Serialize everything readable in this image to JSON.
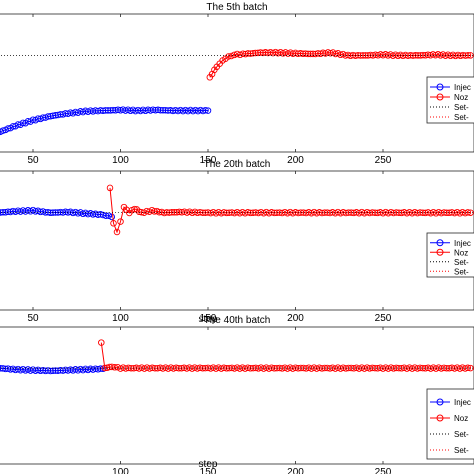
{
  "chart_data": [
    {
      "type": "line",
      "title": "The 5th batch",
      "xlabel": "",
      "ylabel": "",
      "xticks": [
        50,
        100,
        150,
        200,
        250
      ],
      "xlim": [
        30,
        302
      ],
      "ylim": [
        0,
        1
      ],
      "grid": false,
      "legend_position": "right",
      "series": [
        {
          "name": "Injec",
          "color": "#0000ff",
          "marker": "circle",
          "x": [
            30,
            40,
            50,
            60,
            70,
            80,
            90,
            100,
            110,
            120,
            130,
            140,
            150
          ],
          "y": [
            0.14,
            0.19,
            0.23,
            0.26,
            0.28,
            0.295,
            0.3,
            0.305,
            0.3,
            0.305,
            0.3,
            0.3,
            0.3
          ]
        },
        {
          "name": "Noz",
          "color": "#ff0000",
          "marker": "circle",
          "x": [
            151,
            155,
            160,
            165,
            170,
            180,
            190,
            200,
            210,
            220,
            230,
            240,
            250,
            260,
            270,
            280,
            290,
            300
          ],
          "y": [
            0.54,
            0.62,
            0.68,
            0.705,
            0.71,
            0.72,
            0.72,
            0.715,
            0.71,
            0.72,
            0.7,
            0.7,
            0.705,
            0.7,
            0.7,
            0.705,
            0.7,
            0.7
          ]
        },
        {
          "name": "Set-",
          "color": "#000000",
          "dash": "1,2",
          "x": [
            30,
            302
          ],
          "y": [
            0.7,
            0.7
          ]
        },
        {
          "name": "Set-",
          "color": "#ff0000",
          "dash": "1,2",
          "x": [
            30,
            302
          ],
          "y": [
            0.7,
            0.7
          ]
        }
      ]
    },
    {
      "type": "line",
      "title": "The 20th batch",
      "xlabel": "step",
      "ylabel": "",
      "xticks": [
        50,
        100,
        150,
        200,
        250
      ],
      "xlim": [
        30,
        302
      ],
      "ylim": [
        0,
        1
      ],
      "grid": false,
      "legend_position": "right",
      "series": [
        {
          "name": "Injec",
          "color": "#0000ff",
          "marker": "circle",
          "x": [
            30,
            40,
            50,
            60,
            70,
            80,
            90,
            95
          ],
          "y": [
            0.7,
            0.71,
            0.715,
            0.7,
            0.705,
            0.695,
            0.685,
            0.67
          ]
        },
        {
          "name": "Noz",
          "color": "#ff0000",
          "marker": "circle",
          "x": [
            94,
            96,
            98,
            100,
            102,
            105,
            108,
            112,
            118,
            125,
            135,
            150,
            200,
            250,
            300
          ],
          "y": [
            0.88,
            0.62,
            0.56,
            0.64,
            0.74,
            0.7,
            0.73,
            0.7,
            0.715,
            0.7,
            0.705,
            0.7,
            0.7,
            0.7,
            0.7
          ]
        },
        {
          "name": "Set-",
          "color": "#000000",
          "dash": "1,2",
          "x": [
            30,
            302
          ],
          "y": [
            0.7,
            0.7
          ]
        },
        {
          "name": "Set-",
          "color": "#ff0000",
          "dash": "1,2",
          "x": [
            30,
            302
          ],
          "y": [
            0.7,
            0.7
          ]
        }
      ]
    },
    {
      "type": "line",
      "title": "The 40th batch",
      "xlabel": "step",
      "ylabel": "",
      "xticks": [
        100,
        150,
        200,
        250
      ],
      "xlim": [
        30,
        302
      ],
      "ylim": [
        0,
        1
      ],
      "grid": false,
      "legend_position": "right",
      "series": [
        {
          "name": "Injec",
          "color": "#0000ff",
          "marker": "circle",
          "x": [
            30,
            40,
            50,
            60,
            70,
            80,
            90
          ],
          "y": [
            0.7,
            0.69,
            0.685,
            0.68,
            0.685,
            0.69,
            0.695
          ]
        },
        {
          "name": "Noz",
          "color": "#ff0000",
          "marker": "circle",
          "x": [
            89,
            91,
            95,
            100,
            150,
            200,
            250,
            300
          ],
          "y": [
            0.89,
            0.7,
            0.71,
            0.7,
            0.7,
            0.7,
            0.7,
            0.7
          ]
        },
        {
          "name": "Set-",
          "color": "#000000",
          "dash": "1,2",
          "x": [
            30,
            302
          ],
          "y": [
            0.7,
            0.7
          ]
        },
        {
          "name": "Set-",
          "color": "#ff0000",
          "dash": "1,2",
          "x": [
            30,
            302
          ],
          "y": [
            0.7,
            0.7
          ]
        }
      ]
    }
  ]
}
